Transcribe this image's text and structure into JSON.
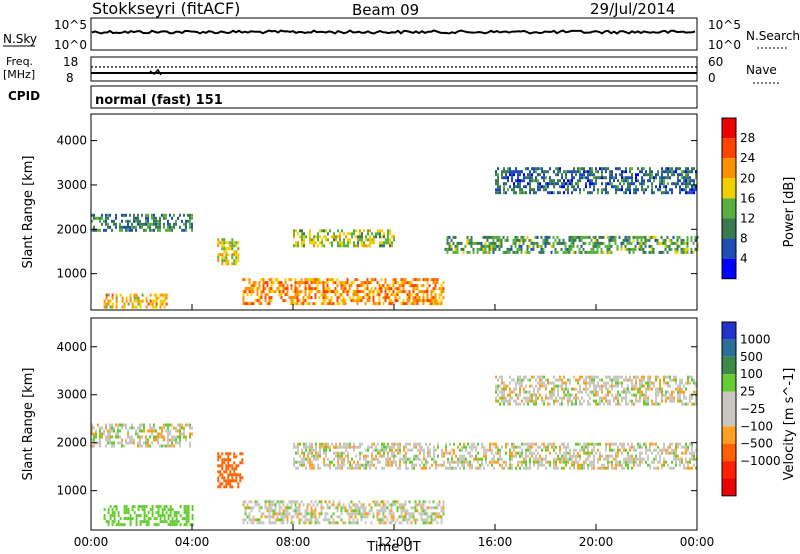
{
  "header": {
    "title": "Stokkseyri (fitACF)",
    "beam": "Beam 09",
    "date": "29/Jul/2014"
  },
  "panels": {
    "nsky": {
      "left_label": "N.Sky",
      "left_ticks": [
        "10^5",
        "10^0"
      ],
      "right_label": "N.Search",
      "right_ticks": [
        "10^5",
        "10^0"
      ]
    },
    "freq": {
      "left_label_line1": "Freq.",
      "left_label_line2": "[MHz]",
      "left_ticks": [
        "18",
        "8"
      ],
      "right_label": "Nave",
      "right_ticks": [
        "60",
        "0"
      ]
    },
    "cpid": {
      "label": "CPID",
      "mode": "normal (fast) 151"
    }
  },
  "colors": {
    "power_scale": [
      "#0000ff",
      "#1e4eb4",
      "#3a7a50",
      "#58b040",
      "#f0d000",
      "#ff9000",
      "#ff4400",
      "#ee0000"
    ],
    "velocity_scale": [
      "#2233cc",
      "#2a6f9a",
      "#3a8a4a",
      "#66cc33",
      "#c8c8c0",
      "#c8c8c0",
      "#ffa020",
      "#ff6000",
      "#ff2000",
      "#ee0000"
    ],
    "no_data": "#ffffff"
  },
  "chart_data": [
    {
      "type": "heatmap",
      "title": "",
      "xlabel": "Time UT",
      "ylabel": "Slant Range [km]",
      "x_ticks": [
        "00:00",
        "04:00",
        "08:00",
        "12:00",
        "16:00",
        "20:00",
        "00:00"
      ],
      "xlim_hours": [
        0,
        24
      ],
      "y_ticks": [
        1000,
        2000,
        3000,
        4000
      ],
      "ylim": [
        180,
        4600
      ],
      "colorbar": {
        "label": "Power [dB]",
        "ticks": [
          4,
          8,
          12,
          16,
          20,
          24,
          28
        ],
        "range": [
          0,
          32
        ]
      },
      "regions": [
        {
          "t0": 0.0,
          "t1": 4.0,
          "r0": 1950,
          "r1": 2350,
          "value": 10
        },
        {
          "t0": 5.0,
          "t1": 5.8,
          "r0": 1200,
          "r1": 1800,
          "value": 18
        },
        {
          "t0": 8.0,
          "t1": 12.0,
          "r0": 1600,
          "r1": 2000,
          "value": 16
        },
        {
          "t0": 14.0,
          "t1": 24.0,
          "r0": 1450,
          "r1": 1850,
          "value": 12
        },
        {
          "t0": 6.0,
          "t1": 14.0,
          "r0": 300,
          "r1": 900,
          "value": 22
        },
        {
          "t0": 0.5,
          "t1": 3.0,
          "r0": 250,
          "r1": 550,
          "value": 20
        },
        {
          "t0": 16.0,
          "t1": 24.0,
          "r0": 2800,
          "r1": 3400,
          "value": 8
        }
      ]
    },
    {
      "type": "heatmap",
      "title": "",
      "xlabel": "Time UT",
      "ylabel": "Slant Range [km]",
      "x_ticks": [
        "00:00",
        "04:00",
        "08:00",
        "12:00",
        "16:00",
        "20:00",
        "00:00"
      ],
      "xlim_hours": [
        0,
        24
      ],
      "y_ticks": [
        1000,
        2000,
        3000,
        4000
      ],
      "ylim": [
        180,
        4600
      ],
      "colorbar": {
        "label": "Velocity [m s^-1]",
        "ticks": [
          "1000",
          "500",
          "100",
          "25",
          "−25",
          "−100",
          "−500",
          "−1000"
        ]
      },
      "regions": [
        {
          "t0": 0.0,
          "t1": 4.0,
          "r0": 1900,
          "r1": 2400,
          "value": 0
        },
        {
          "t0": 5.0,
          "t1": 6.0,
          "r0": 1100,
          "r1": 1800,
          "value": -150
        },
        {
          "t0": 8.0,
          "t1": 24.0,
          "r0": 1450,
          "r1": 2000,
          "value": 0
        },
        {
          "t0": 0.5,
          "t1": 4.0,
          "r0": 300,
          "r1": 700,
          "value": 150
        },
        {
          "t0": 6.0,
          "t1": 14.0,
          "r0": 300,
          "r1": 800,
          "value": 0
        },
        {
          "t0": 16.0,
          "t1": 24.0,
          "r0": 2800,
          "r1": 3400,
          "value": 0
        }
      ]
    }
  ]
}
